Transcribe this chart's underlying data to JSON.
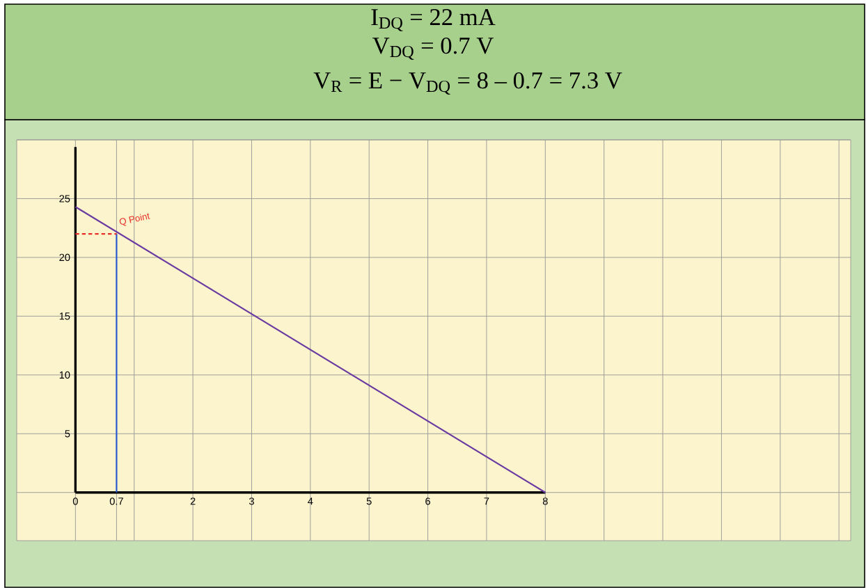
{
  "chart_data": {
    "type": "line",
    "title": "I$_{DQ}$ = 22 mA",
    "subtitle": "V$_{DQ}$ = 0.7 V",
    "annotations": [
      "V$_{R}$ = E − V$_{DQ}$ = 8 – 0.7 = 7.3 V",
      {
        "text": "Q Point",
        "x": 0.7,
        "y": 22
      }
    ],
    "series": [
      {
        "x": [
          0,
          8
        ],
        "values": [
          24.3,
          0
        ],
        "color": "#6a3aa2"
      },
      {
        "x": [
          0.7,
          0.7
        ],
        "values": [
          0,
          22
        ],
        "color": "#2456d0"
      },
      {
        "x": [
          0,
          0.7
        ],
        "values": [
          22,
          22
        ],
        "color": "#e8302a",
        "line_style": "dashed"
      }
    ],
    "xlim": [
      -1,
      13.2
    ],
    "ylim": [
      -4.1,
      30
    ],
    "xticks": [
      0,
      0.7,
      {
        "value": 1,
        "label": null
      },
      2,
      3,
      4,
      5,
      6,
      7,
      8,
      {
        "value": 9,
        "label": null
      },
      {
        "value": 10,
        "label": null
      },
      {
        "value": 11,
        "label": null
      },
      {
        "value": 12,
        "label": null
      },
      {
        "value": 13,
        "label": null
      }
    ],
    "yticks": [
      {
        "value": 0,
        "label": null
      },
      5,
      10,
      15,
      20,
      25,
      {
        "value": 30,
        "label": null
      }
    ],
    "grid": true,
    "marker": "none"
  }
}
